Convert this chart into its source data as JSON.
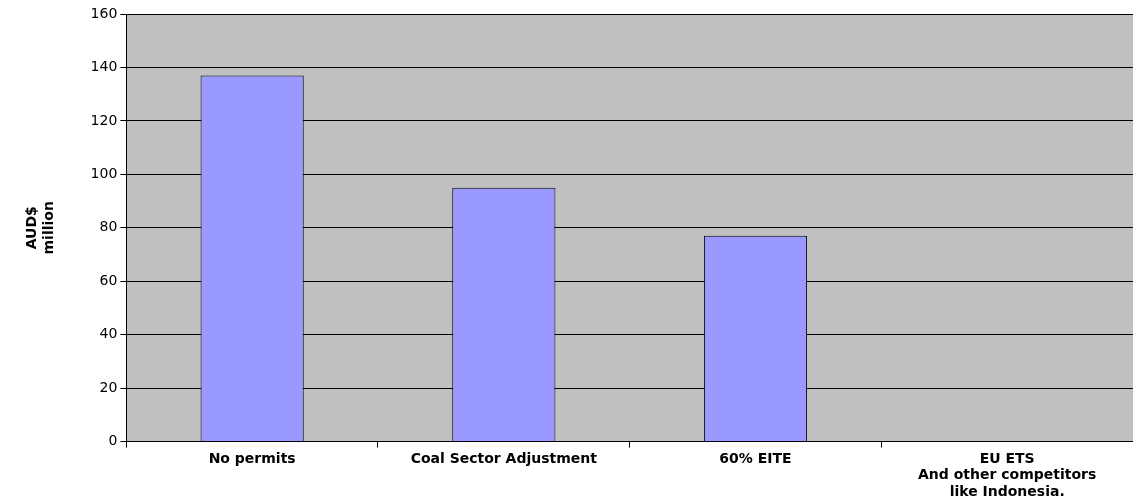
{
  "chart_data": {
    "type": "bar",
    "ylabel": "AUD$\nmillion",
    "categories": [
      "No permits",
      "Coal Sector Adjustment",
      "60% EITE",
      "EU ETS\nAnd other competitors\nlike Indonesia."
    ],
    "values": [
      137,
      95,
      77,
      null
    ],
    "color": "#9999ff",
    "ylim": [
      0,
      160
    ],
    "yticks": [
      0,
      20,
      40,
      60,
      80,
      100,
      120,
      140,
      160
    ],
    "grid": "y"
  }
}
